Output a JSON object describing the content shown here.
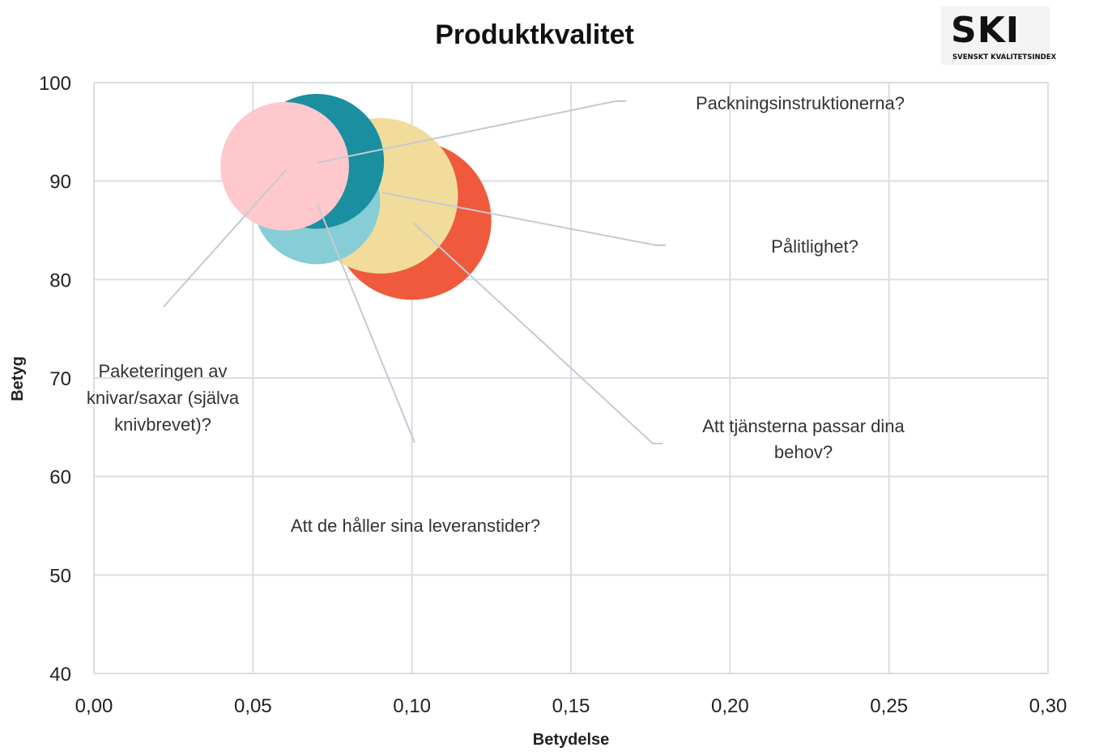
{
  "logo": {
    "mark": "SKI",
    "subtitle": "SVENSKT KVALITETSINDEX"
  },
  "chart_data": {
    "type": "bubble",
    "title": "Produktkvalitet",
    "xlabel": "Betydelse",
    "ylabel": "Betyg",
    "xlim": [
      0.0,
      0.3
    ],
    "ylim": [
      40,
      100
    ],
    "x_ticks": [
      "0,00",
      "0,05",
      "0,10",
      "0,15",
      "0,20",
      "0,25",
      "0,30"
    ],
    "y_ticks": [
      "40",
      "50",
      "60",
      "70",
      "80",
      "90",
      "100"
    ],
    "grid": true,
    "series": [
      {
        "label": "Att tjänsterna passar dina behov?",
        "x": 0.1,
        "y": 86,
        "size": 1.0,
        "color": "#ef5a3c"
      },
      {
        "label": "Pålitlighet?",
        "x": 0.09,
        "y": 88.5,
        "size": 0.98,
        "color": "#f1dc9b"
      },
      {
        "label": "Att de håller sina leveranstider?",
        "x": 0.07,
        "y": 88,
        "size": 0.8,
        "color": "#86cdd6"
      },
      {
        "label": "Packningsinstruktionerna?",
        "x": 0.07,
        "y": 92,
        "size": 0.85,
        "color": "#1a8fa0"
      },
      {
        "label": "Paketeringen av knivar/saxar (själva knivbrevet)?",
        "x": 0.06,
        "y": 91.5,
        "size": 0.81,
        "color": "#ffc8cd"
      }
    ]
  }
}
